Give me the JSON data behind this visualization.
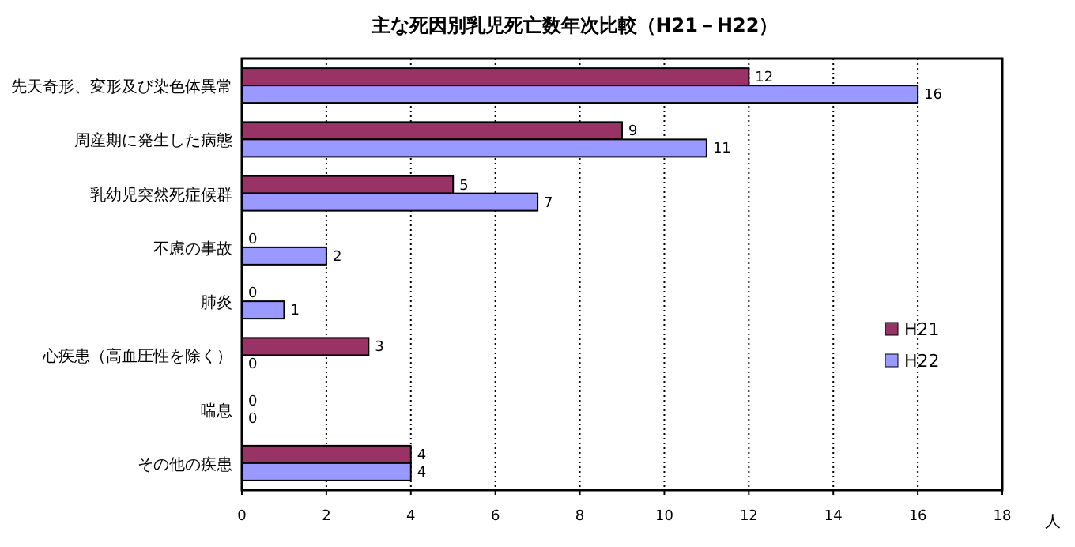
{
  "chart_data": {
    "type": "bar",
    "orientation": "horizontal",
    "title": "主な死因別乳児死亡数年次比較（H21－H22）",
    "xlabel": "人",
    "categories": [
      "先天奇形、変形及び染色体異常",
      "周産期に発生した病態",
      "乳幼児突然死症候群",
      "不慮の事故",
      "肺炎",
      "心疾患（高血圧性を除く）",
      "喘息",
      "その他の疾患"
    ],
    "series": [
      {
        "name": "H21",
        "color": "#993366",
        "values": [
          12,
          9,
          5,
          0,
          0,
          3,
          0,
          4
        ]
      },
      {
        "name": "H22",
        "color": "#9999ff",
        "values": [
          16,
          11,
          7,
          2,
          1,
          0,
          0,
          4
        ]
      }
    ],
    "xlim": [
      0,
      18
    ],
    "xticks": [
      0,
      2,
      4,
      6,
      8,
      10,
      12,
      14,
      16,
      18
    ],
    "grid": "x",
    "legend": "right",
    "data_labels": true
  }
}
